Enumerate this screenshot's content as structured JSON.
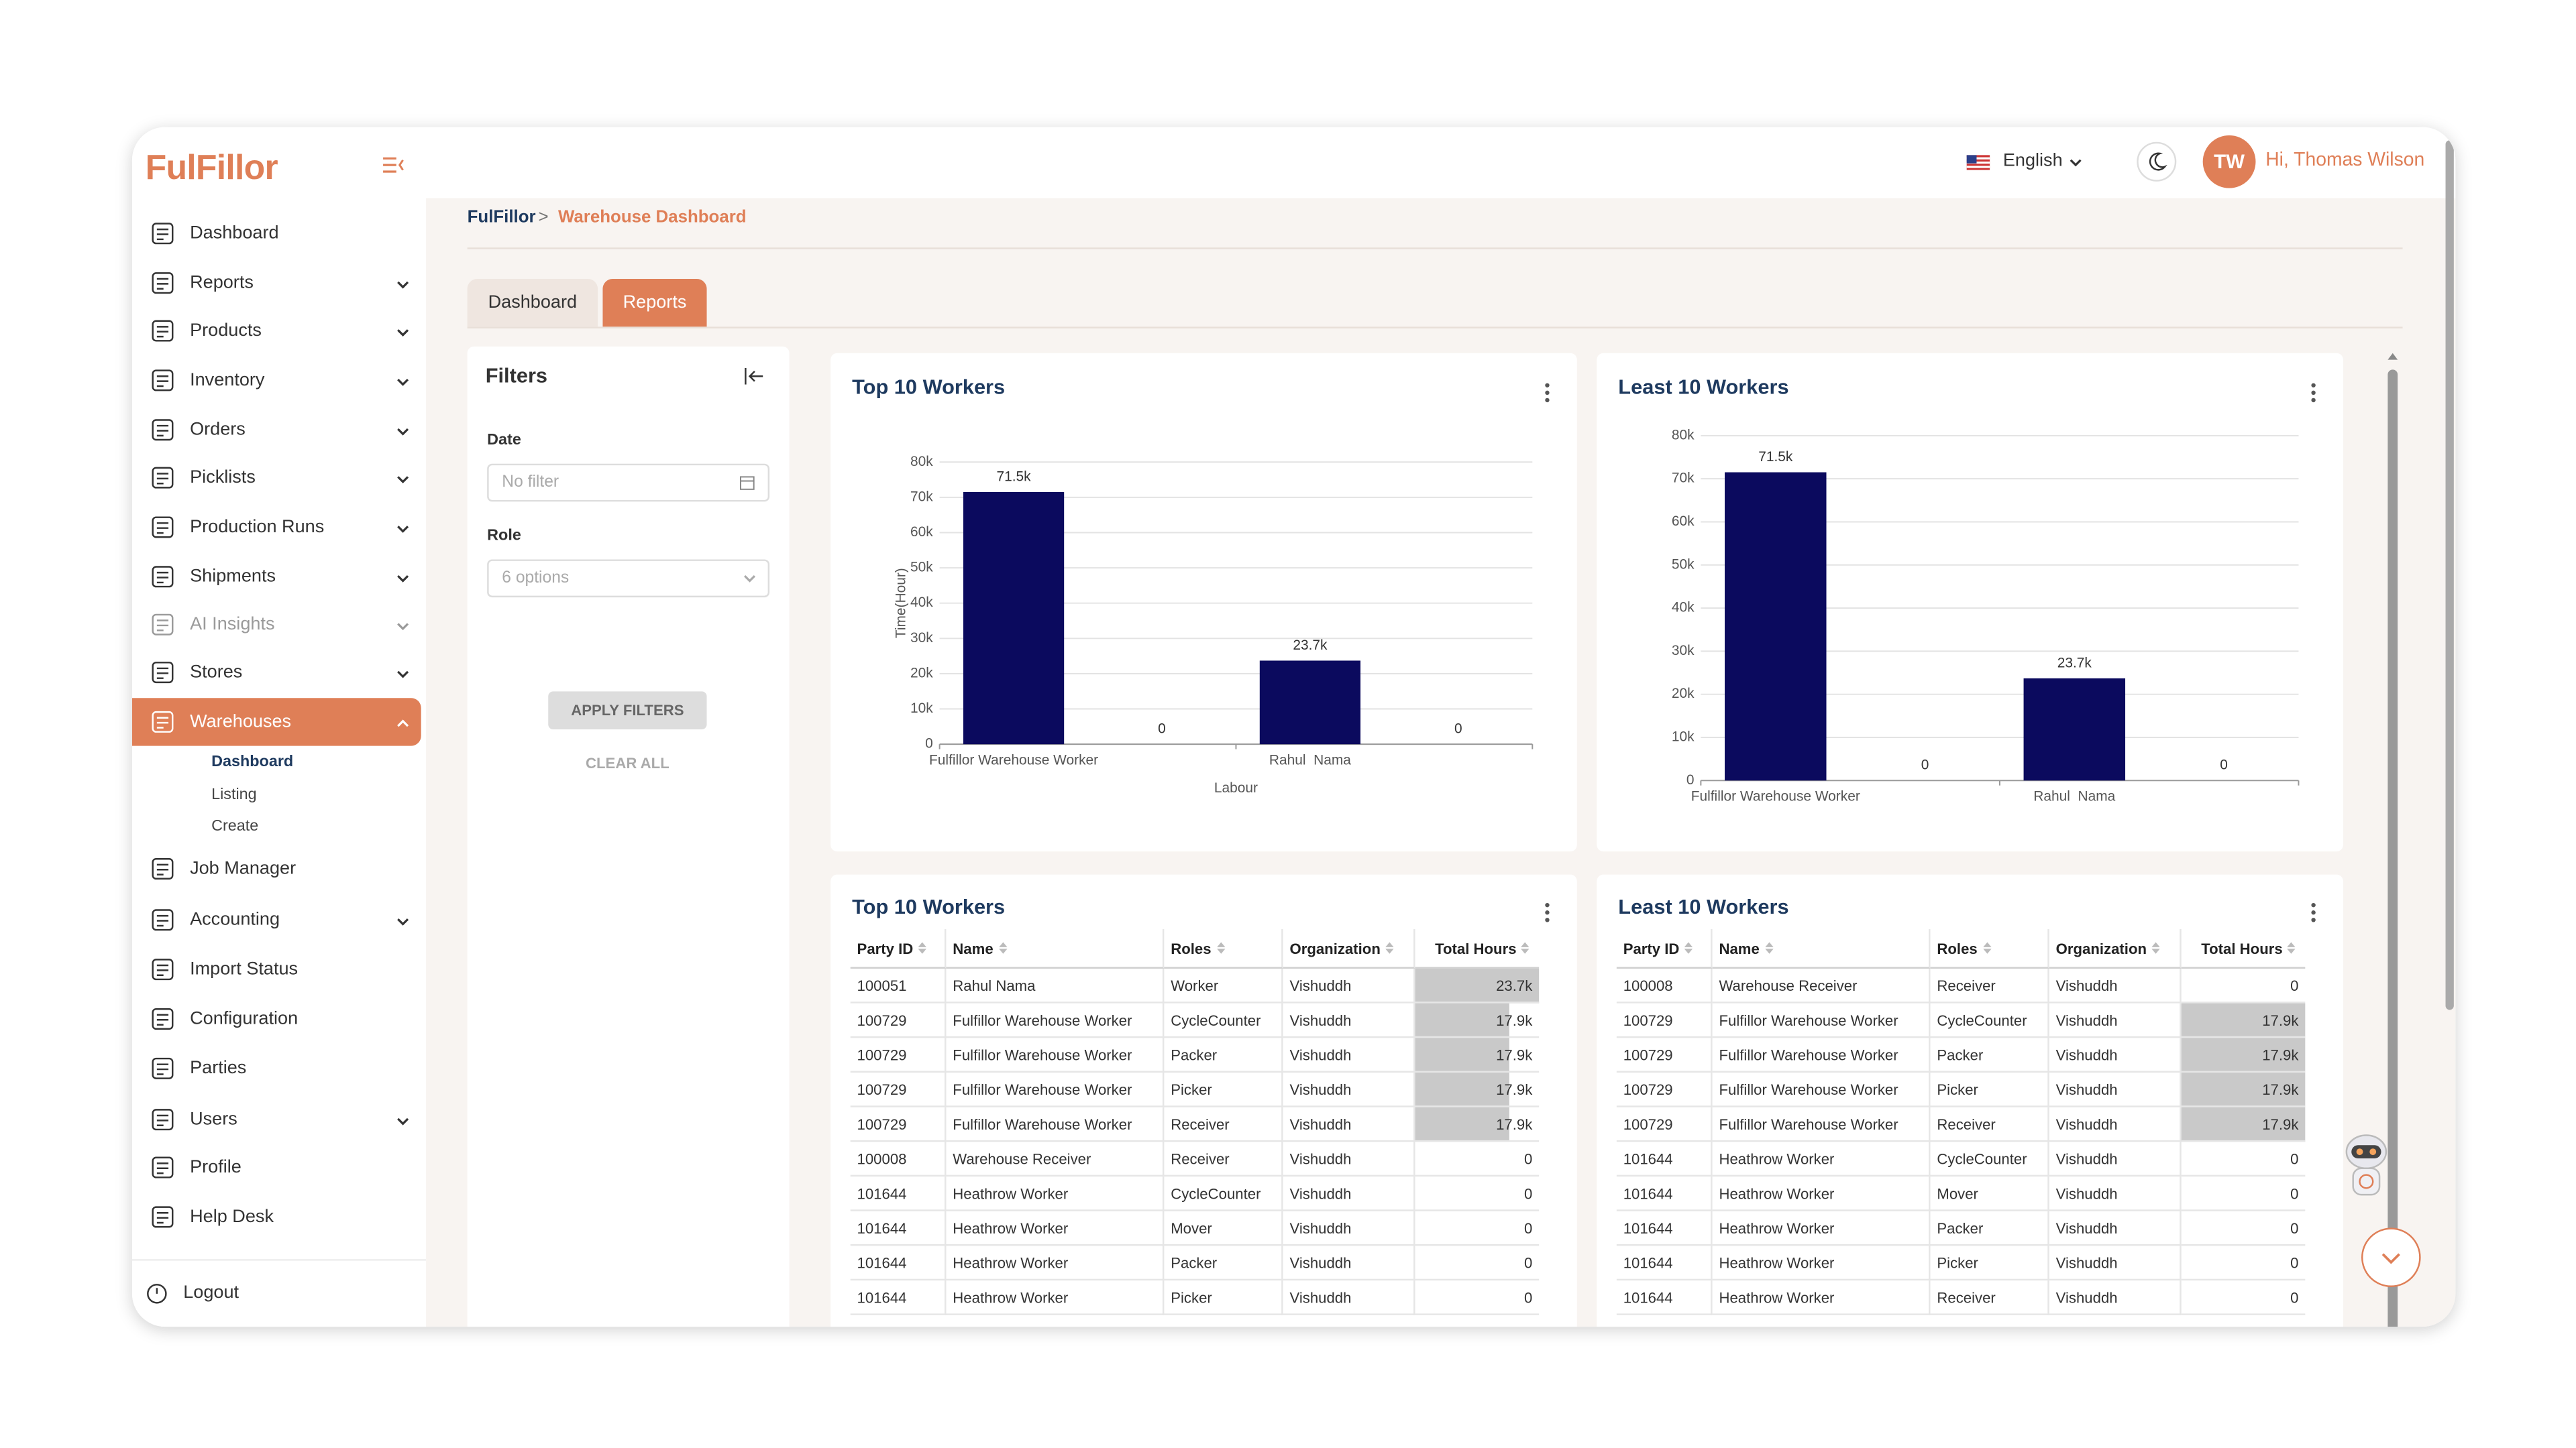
{
  "header": {
    "brand": "FulFillor",
    "language": "English",
    "initials": "TW",
    "greeting": "Hi, Thomas Wilson"
  },
  "sidebar": {
    "items": [
      {
        "label": "Dashboard"
      },
      {
        "label": "Reports",
        "expandable": true
      },
      {
        "label": "Products",
        "expandable": true
      },
      {
        "label": "Inventory",
        "expandable": true
      },
      {
        "label": "Orders",
        "expandable": true
      },
      {
        "label": "Picklists",
        "expandable": true
      },
      {
        "label": "Production Runs",
        "expandable": true
      },
      {
        "label": "Shipments",
        "expandable": true
      },
      {
        "label": "AI Insights",
        "expandable": true,
        "disabled": true
      },
      {
        "label": "Stores",
        "expandable": true
      },
      {
        "label": "Warehouses",
        "expandable": true,
        "active": true,
        "children": [
          {
            "label": "Dashboard",
            "active": true
          },
          {
            "label": "Listing"
          },
          {
            "label": "Create"
          }
        ]
      },
      {
        "label": "Job Manager"
      },
      {
        "label": "Accounting",
        "expandable": true
      },
      {
        "label": "Import Status"
      },
      {
        "label": "Configuration"
      },
      {
        "label": "Parties"
      },
      {
        "label": "Users",
        "expandable": true
      },
      {
        "label": "Profile"
      },
      {
        "label": "Help Desk"
      }
    ],
    "logout": "Logout"
  },
  "breadcrumb": {
    "root": "FulFillor",
    "separator": ">",
    "current": "Warehouse Dashboard"
  },
  "tabs": [
    {
      "label": "Dashboard"
    },
    {
      "label": "Reports",
      "active": true
    }
  ],
  "filters": {
    "title": "Filters",
    "fields": [
      {
        "label": "Date",
        "placeholder": "No filter"
      },
      {
        "label": "Role",
        "placeholder": "6 options"
      }
    ],
    "apply": "APPLY FILTERS",
    "clear": "CLEAR ALL"
  },
  "chart_data": [
    {
      "type": "bar",
      "title": "Top 10 Workers",
      "xlabel": "Labour",
      "ylabel": "Time(Hour)",
      "categories": [
        "Fulfillor Warehouse Worker",
        null,
        "Rahul  Nama",
        null
      ],
      "values": [
        71500,
        0,
        23700,
        0
      ],
      "value_labels": [
        "71.5k",
        "0",
        "23.7k",
        "0"
      ],
      "color": "#0b0a5e",
      "ylim": [
        0,
        80000
      ],
      "yticks": [
        0,
        {
          "value": 10000,
          "label": "10k"
        },
        {
          "value": 20000,
          "label": "20k"
        },
        {
          "value": 30000,
          "label": "30k"
        },
        {
          "value": 40000,
          "label": "40k"
        },
        {
          "value": 50000,
          "label": "50k"
        },
        {
          "value": 60000,
          "label": "60k"
        },
        {
          "value": 70000,
          "label": "70k"
        },
        {
          "value": 80000,
          "label": "80k"
        }
      ],
      "grid": true
    },
    {
      "type": "bar",
      "title": "Least 10 Workers",
      "categories": [
        "Fulfillor Warehouse Worker",
        null,
        "Rahul  Nama",
        null
      ],
      "values": [
        71500,
        0,
        23700,
        0
      ],
      "value_labels": [
        "71.5k",
        "0",
        "23.7k",
        "0"
      ],
      "color": "#0b0a5e",
      "ylim": [
        0,
        80000
      ],
      "yticks": [
        0,
        {
          "value": 10000,
          "label": "10k"
        },
        {
          "value": 20000,
          "label": "20k"
        },
        {
          "value": 30000,
          "label": "30k"
        },
        {
          "value": 40000,
          "label": "40k"
        },
        {
          "value": 50000,
          "label": "50k"
        },
        {
          "value": 60000,
          "label": "60k"
        },
        {
          "value": 70000,
          "label": "70k"
        },
        {
          "value": 80000,
          "label": "80k"
        }
      ],
      "grid": true
    }
  ],
  "tables": [
    {
      "title": "Top 10 Workers",
      "columns": [
        "Party ID",
        "Name",
        "Roles",
        "Organization",
        "Total Hours"
      ],
      "rows": [
        [
          "100051",
          "Rahul Nama",
          "Worker",
          "Vishuddh"
        ],
        [
          "100729",
          "Fulfillor Warehouse Worker",
          "CycleCounter",
          "Vishuddh"
        ],
        [
          "100729",
          "Fulfillor Warehouse Worker",
          "Packer",
          "Vishuddh"
        ],
        [
          "100729",
          "Fulfillor Warehouse Worker",
          "Picker",
          "Vishuddh"
        ],
        [
          "100729",
          "Fulfillor Warehouse Worker",
          "Receiver",
          "Vishuddh"
        ],
        [
          "100008",
          "Warehouse Receiver",
          "Receiver",
          "Vishuddh"
        ],
        [
          "101644",
          "Heathrow Worker",
          "CycleCounter",
          "Vishuddh"
        ],
        [
          "101644",
          "Heathrow Worker",
          "Mover",
          "Vishuddh"
        ],
        [
          "101644",
          "Heathrow Worker",
          "Packer",
          "Vishuddh"
        ],
        [
          "101644",
          "Heathrow Worker",
          "Picker",
          "Vishuddh"
        ]
      ],
      "hours": [
        23700,
        17900,
        17900,
        17900,
        17900,
        0,
        0,
        0,
        0,
        0
      ],
      "hours_labels": [
        "23.7k",
        "17.9k",
        "17.9k",
        "17.9k",
        "17.9k",
        "0",
        "0",
        "0",
        "0",
        "0"
      ]
    },
    {
      "title": "Least 10 Workers",
      "columns": [
        "Party ID",
        "Name",
        "Roles",
        "Organization",
        "Total Hours"
      ],
      "rows": [
        [
          "100008",
          "Warehouse Receiver",
          "Receiver",
          "Vishuddh"
        ],
        [
          "100729",
          "Fulfillor Warehouse Worker",
          "CycleCounter",
          "Vishuddh"
        ],
        [
          "100729",
          "Fulfillor Warehouse Worker",
          "Packer",
          "Vishuddh"
        ],
        [
          "100729",
          "Fulfillor Warehouse Worker",
          "Picker",
          "Vishuddh"
        ],
        [
          "100729",
          "Fulfillor Warehouse Worker",
          "Receiver",
          "Vishuddh"
        ],
        [
          "101644",
          "Heathrow Worker",
          "CycleCounter",
          "Vishuddh"
        ],
        [
          "101644",
          "Heathrow Worker",
          "Mover",
          "Vishuddh"
        ],
        [
          "101644",
          "Heathrow Worker",
          "Packer",
          "Vishuddh"
        ],
        [
          "101644",
          "Heathrow Worker",
          "Picker",
          "Vishuddh"
        ],
        [
          "101644",
          "Heathrow Worker",
          "Receiver",
          "Vishuddh"
        ]
      ],
      "hours": [
        0,
        17900,
        17900,
        17900,
        17900,
        0,
        0,
        0,
        0,
        0
      ],
      "hours_labels": [
        "0",
        "17.9k",
        "17.9k",
        "17.9k",
        "17.9k",
        "0",
        "0",
        "0",
        "0",
        "0"
      ]
    }
  ]
}
